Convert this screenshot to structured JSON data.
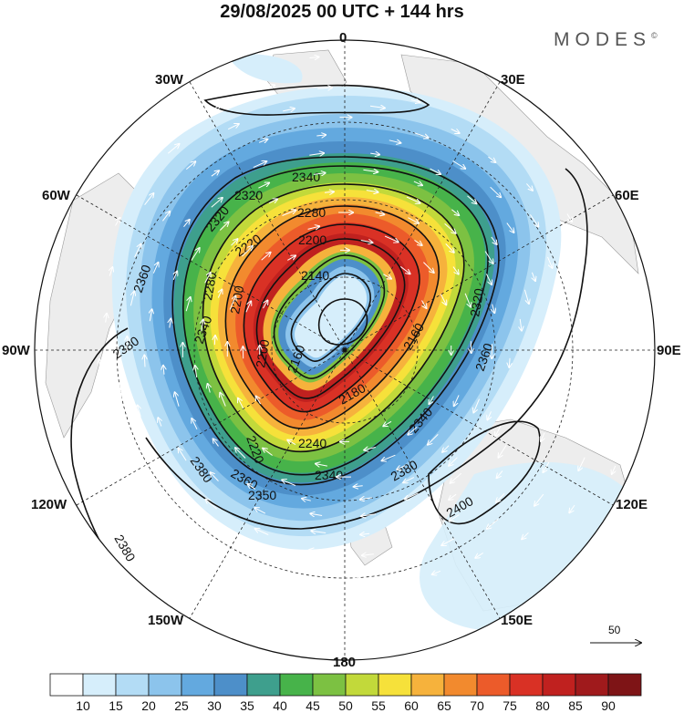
{
  "header": {
    "title": "29/08/2025  00 UTC  + 144 hrs",
    "brand": "MODES",
    "brand_mark": "©"
  },
  "map": {
    "projection": "north-polar-stereographic",
    "longitude_labels": {
      "top": "0",
      "right_top": "30E",
      "right_upper": "60E",
      "right": "90E",
      "right_lower": "120E",
      "right_bottom": "150E",
      "bottom": "180",
      "left_bottom": "150W",
      "left_lower": "120W",
      "left": "90W",
      "left_upper": "60W",
      "left_top": "30W"
    },
    "contour_labels": [
      "2340",
      "2320",
      "2280",
      "2320",
      "2200",
      "2220",
      "2200",
      "2140",
      "2360",
      "2280",
      "2200",
      "2320",
      "2380",
      "2340",
      "2160",
      "2180",
      "2360",
      "2160",
      "2240",
      "2220",
      "2340",
      "2360",
      "2380",
      "2380",
      "2350",
      "2400",
      "2380",
      "2340"
    ],
    "contour_label_values": {
      "outer": [
        "2380",
        "2380",
        "2380",
        "2400"
      ],
      "ring_2360": [
        "2360",
        "2360",
        "2350"
      ],
      "ring_2340": [
        "2340",
        "2340",
        "2340",
        "2340"
      ],
      "ring_2320": [
        "2320",
        "2320",
        "2320"
      ],
      "ring_2280": [
        "2280",
        "2280"
      ],
      "ring_2240": [
        "2240",
        "2220",
        "2220"
      ],
      "ring_2200": [
        "2200",
        "2200",
        "2200"
      ],
      "ring_2180": [
        "2180",
        "2160",
        "2160"
      ],
      "center": [
        "2140"
      ]
    },
    "wind_reference_arrow": "50"
  },
  "colorbar": {
    "ticks": [
      "10",
      "15",
      "20",
      "25",
      "30",
      "35",
      "40",
      "45",
      "50",
      "55",
      "60",
      "65",
      "70",
      "75",
      "80",
      "85",
      "90"
    ],
    "colors": [
      "#ffffff",
      "#d6eefb",
      "#b3dcf5",
      "#8cc4ec",
      "#63a9df",
      "#4d8fc9",
      "#3e9f8d",
      "#47b34a",
      "#7cc142",
      "#c2d93a",
      "#f6e13a",
      "#f6b23c",
      "#f28a2e",
      "#ec5b2a",
      "#d93125",
      "#c0211f",
      "#a01a1c",
      "#7e1416"
    ]
  }
}
